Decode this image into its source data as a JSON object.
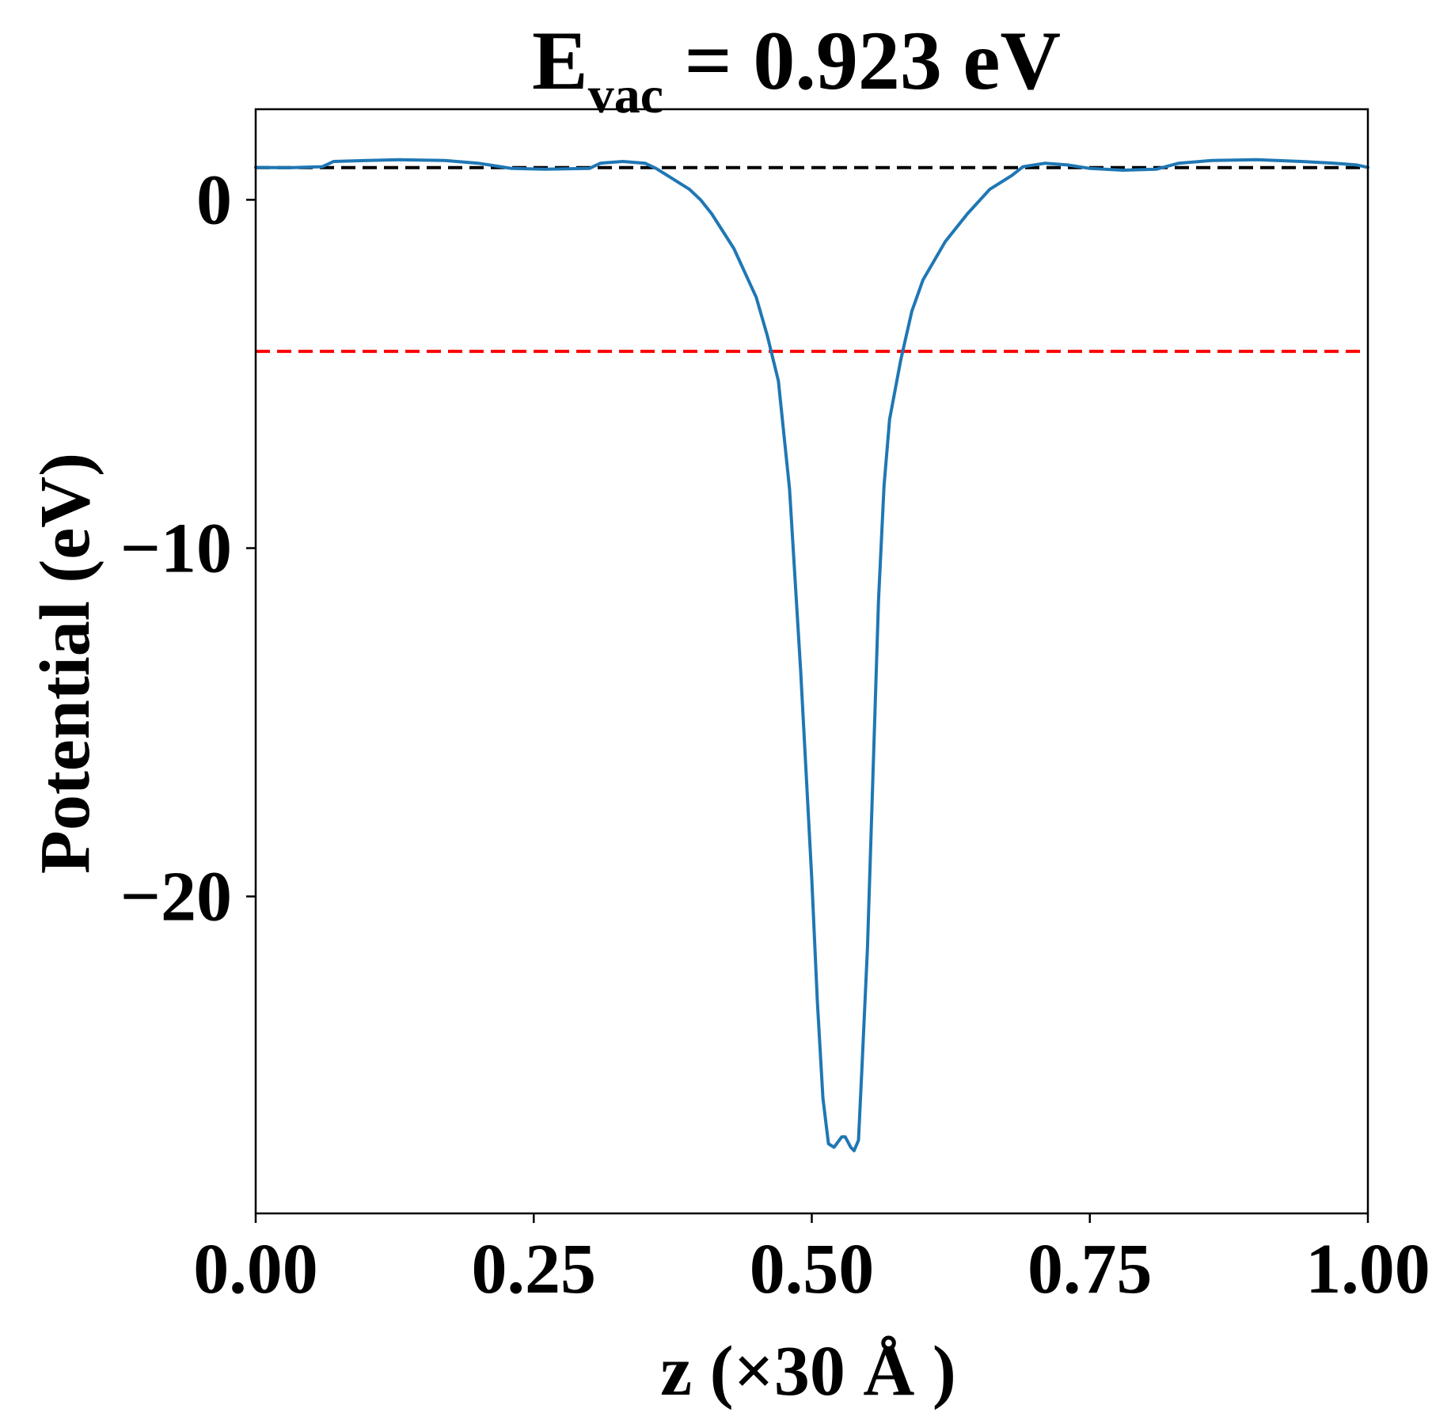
{
  "chart_data": {
    "type": "line",
    "title": {
      "main": "E",
      "subscript": "vac",
      "rest": " = 0.923 eV"
    },
    "xlabel": "z (×30 Å )",
    "ylabel": "Potential (eV)",
    "xlim": [
      0.0,
      1.0
    ],
    "ylim": [
      -29.1,
      2.6
    ],
    "xticks": [
      0.0,
      0.25,
      0.5,
      0.75,
      1.0
    ],
    "xtick_labels": [
      "0.00",
      "0.25",
      "0.50",
      "0.75",
      "1.00"
    ],
    "yticks": [
      0,
      -10,
      -20
    ],
    "ytick_labels": [
      "0",
      "−10",
      "−20"
    ],
    "grid": false,
    "reference_lines": [
      {
        "y": 0.923,
        "color": "#000000",
        "style": "dashed"
      },
      {
        "y": -4.35,
        "color": "#ff0000",
        "style": "dashed"
      }
    ],
    "series": [
      {
        "color": "#1f77b4",
        "points": [
          [
            0.0,
            0.93
          ],
          [
            0.03,
            0.92
          ],
          [
            0.06,
            0.95
          ],
          [
            0.07,
            1.1
          ],
          [
            0.1,
            1.13
          ],
          [
            0.13,
            1.15
          ],
          [
            0.17,
            1.13
          ],
          [
            0.2,
            1.05
          ],
          [
            0.23,
            0.9
          ],
          [
            0.26,
            0.88
          ],
          [
            0.3,
            0.9
          ],
          [
            0.31,
            1.05
          ],
          [
            0.33,
            1.1
          ],
          [
            0.35,
            1.05
          ],
          [
            0.36,
            0.9
          ],
          [
            0.37,
            0.7
          ],
          [
            0.39,
            0.3
          ],
          [
            0.4,
            0.0
          ],
          [
            0.41,
            -0.4
          ],
          [
            0.43,
            -1.4
          ],
          [
            0.45,
            -2.8
          ],
          [
            0.46,
            -3.9
          ],
          [
            0.47,
            -5.2
          ],
          [
            0.48,
            -8.3
          ],
          [
            0.49,
            -13.5
          ],
          [
            0.5,
            -19.5
          ],
          [
            0.505,
            -23.0
          ],
          [
            0.51,
            -25.8
          ],
          [
            0.515,
            -27.1
          ],
          [
            0.52,
            -27.2
          ],
          [
            0.527,
            -26.9
          ],
          [
            0.53,
            -26.9
          ],
          [
            0.535,
            -27.2
          ],
          [
            0.538,
            -27.3
          ],
          [
            0.542,
            -27.0
          ],
          [
            0.545,
            -25.0
          ],
          [
            0.55,
            -21.5
          ],
          [
            0.555,
            -16.5
          ],
          [
            0.56,
            -11.5
          ],
          [
            0.565,
            -8.2
          ],
          [
            0.57,
            -6.3
          ],
          [
            0.58,
            -4.6
          ],
          [
            0.59,
            -3.2
          ],
          [
            0.6,
            -2.3
          ],
          [
            0.62,
            -1.2
          ],
          [
            0.64,
            -0.4
          ],
          [
            0.66,
            0.3
          ],
          [
            0.68,
            0.7
          ],
          [
            0.69,
            0.95
          ],
          [
            0.71,
            1.05
          ],
          [
            0.73,
            1.0
          ],
          [
            0.75,
            0.9
          ],
          [
            0.78,
            0.85
          ],
          [
            0.81,
            0.88
          ],
          [
            0.83,
            1.05
          ],
          [
            0.86,
            1.13
          ],
          [
            0.9,
            1.15
          ],
          [
            0.94,
            1.1
          ],
          [
            0.97,
            1.05
          ],
          [
            0.99,
            1.0
          ],
          [
            1.0,
            0.93
          ]
        ]
      }
    ]
  }
}
